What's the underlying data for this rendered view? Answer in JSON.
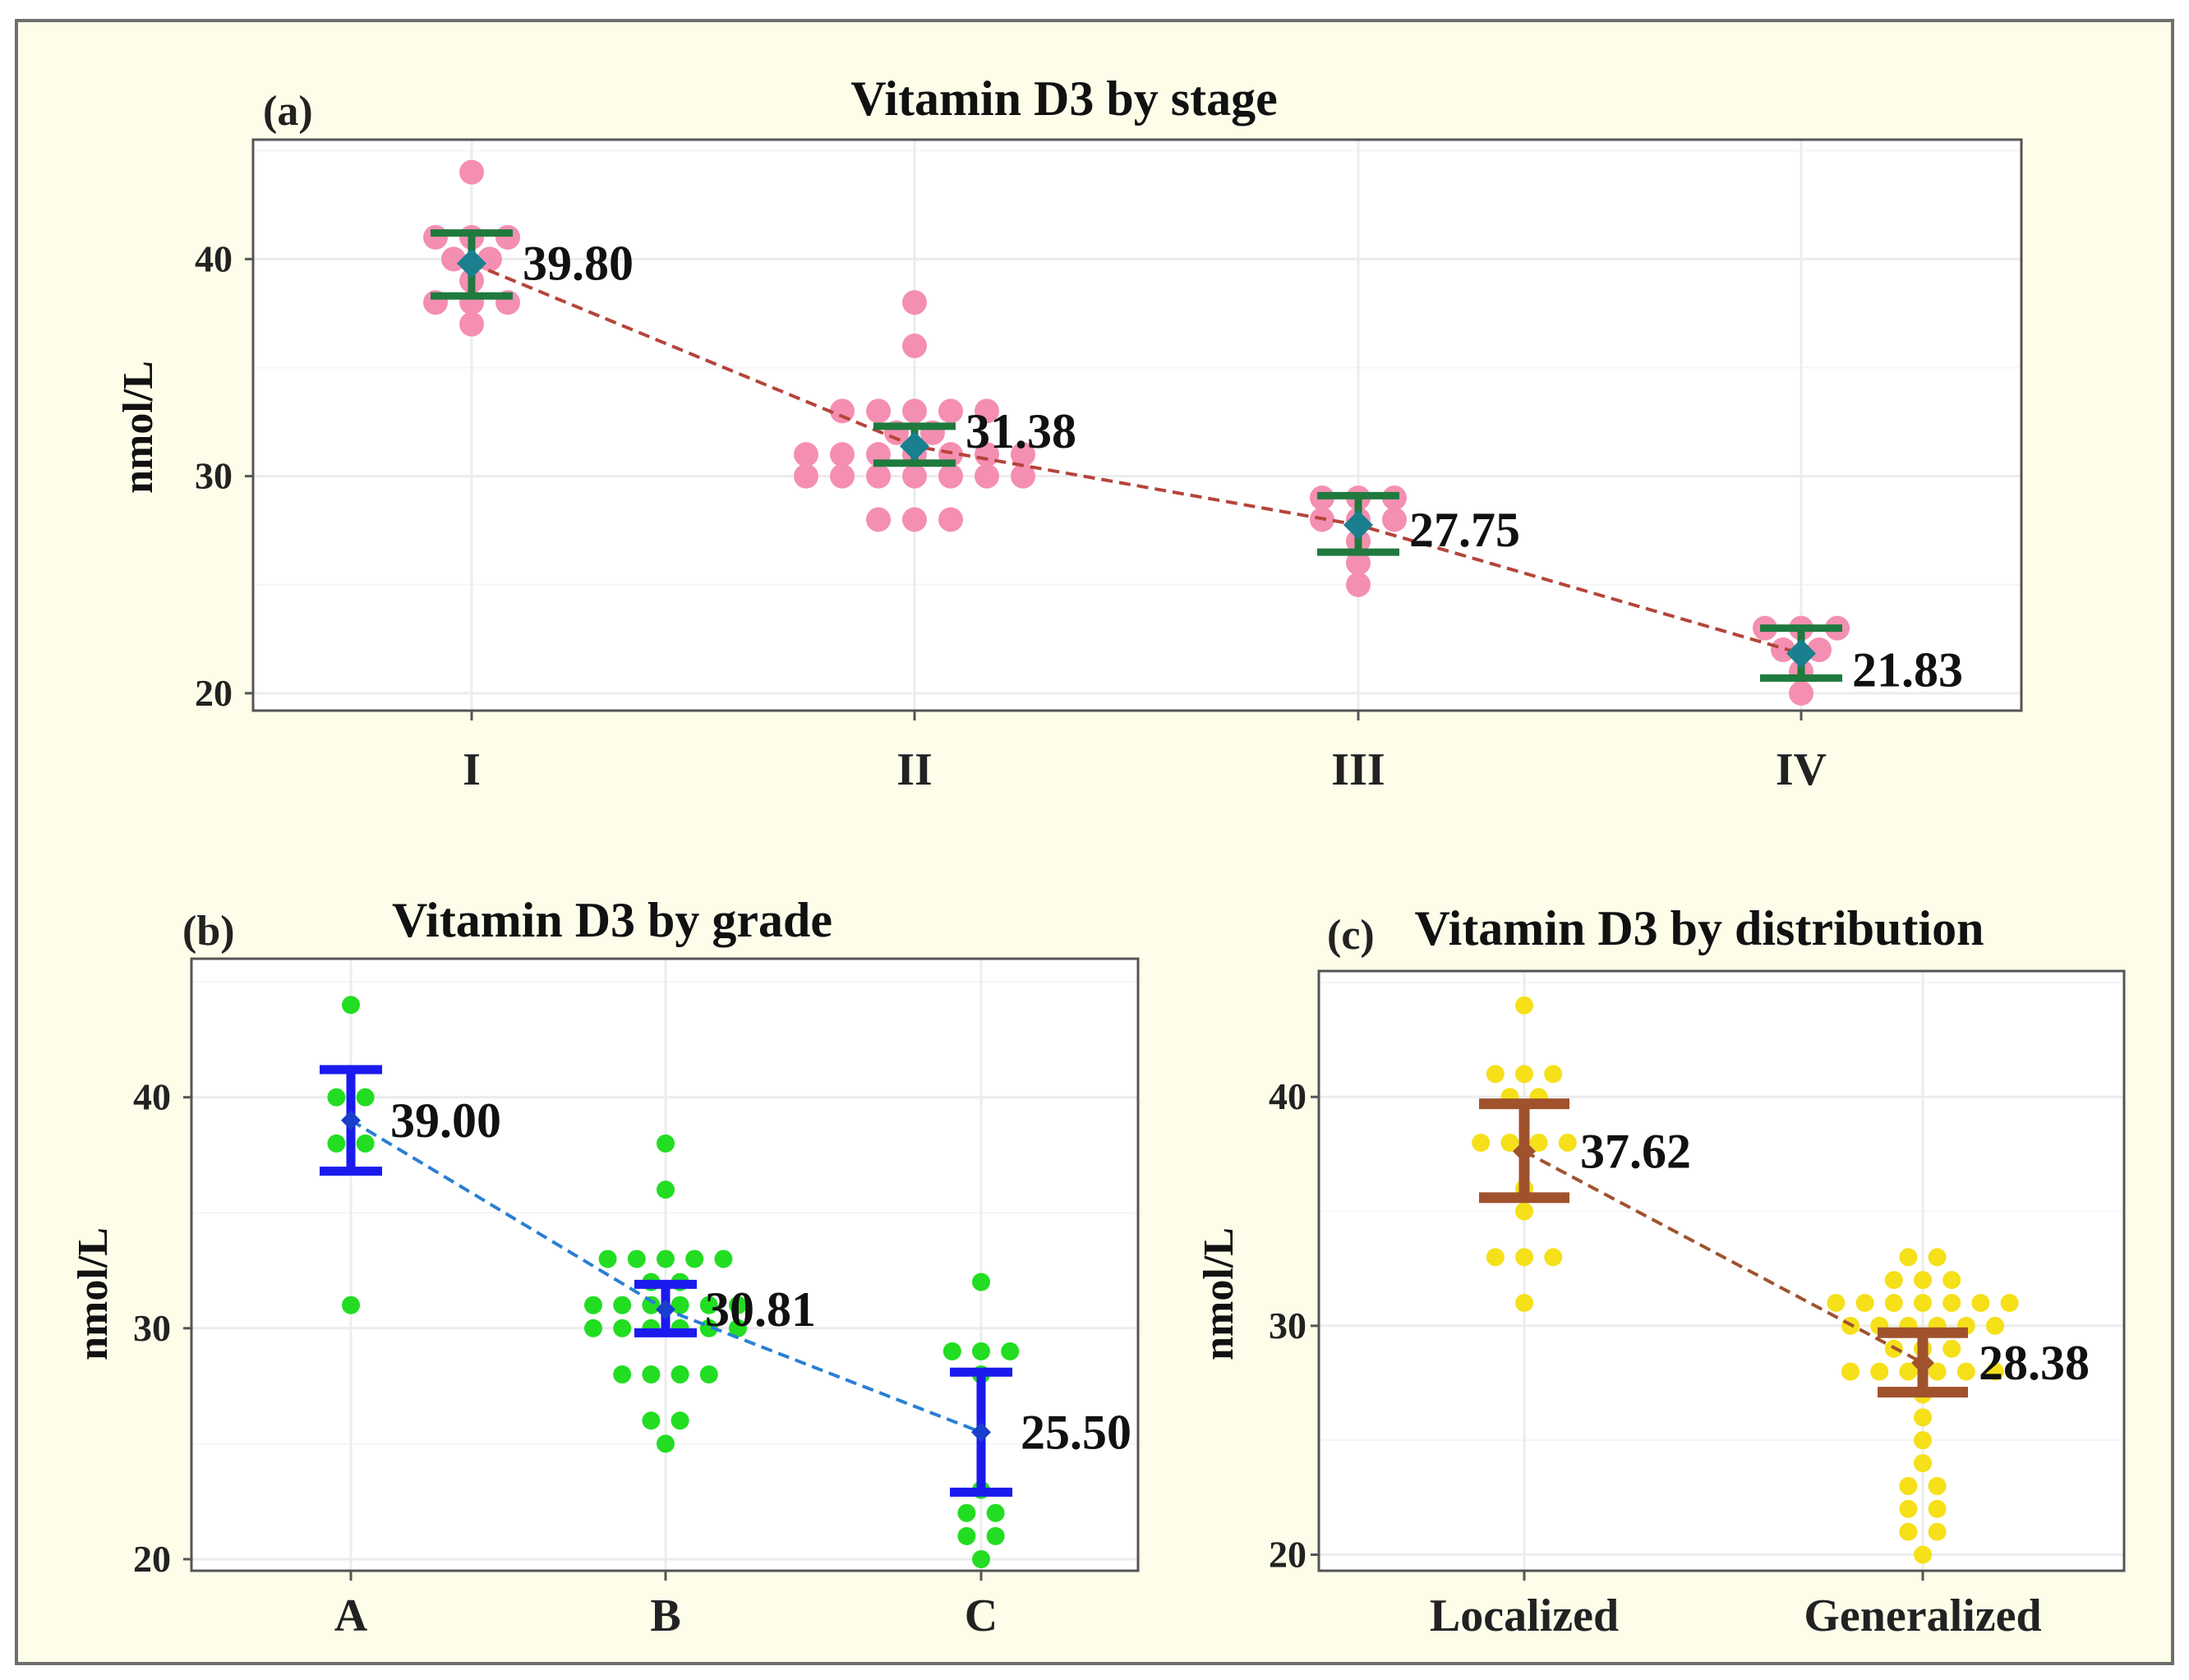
{
  "chart_data": [
    {
      "panel": "(a)",
      "type": "scatter",
      "title": "Vitamin D3 by stage",
      "xlabel": "",
      "ylabel": "nmol/L",
      "categories": [
        "I",
        "II",
        "III",
        "IV"
      ],
      "yticks": [
        20,
        30,
        40
      ],
      "ylim": [
        19.2,
        45.5
      ],
      "colors": {
        "points": "#f48fb1",
        "error_bar": "#1f7a3e",
        "mean_marker": "#1a7f8e",
        "trend": "#b5443b"
      },
      "means": [
        39.8,
        31.38,
        27.75,
        21.83
      ],
      "mean_labels": [
        "39.80",
        "31.38",
        "27.75",
        "21.83"
      ],
      "error_bars": [
        [
          38.3,
          41.2
        ],
        [
          30.6,
          32.3
        ],
        [
          26.5,
          29.1
        ],
        [
          20.7,
          23.0
        ]
      ],
      "points": [
        [
          44,
          41,
          41,
          41,
          40,
          40,
          39,
          38,
          38,
          38,
          37
        ],
        [
          38,
          36,
          33,
          33,
          33,
          33,
          33,
          32,
          32,
          31,
          31,
          31,
          31,
          31,
          31,
          31,
          30,
          30,
          30,
          30,
          30,
          30,
          30,
          28,
          28,
          28
        ],
        [
          29,
          29,
          29,
          28,
          28,
          28,
          27,
          26,
          25
        ],
        [
          23,
          23,
          23,
          22,
          22,
          21,
          20
        ]
      ]
    },
    {
      "panel": "(b)",
      "type": "scatter",
      "title": "Vitamin D3 by grade",
      "xlabel": "",
      "ylabel": "nmol/L",
      "categories": [
        "A",
        "B",
        "C"
      ],
      "yticks": [
        20,
        30,
        40
      ],
      "ylim": [
        19.5,
        46
      ],
      "colors": {
        "points": "#22dd22",
        "error_bar": "#1a1aee",
        "mean_marker": "#1a3fcc",
        "trend": "#2a7fd4"
      },
      "means": [
        39.0,
        30.81,
        25.5
      ],
      "mean_labels": [
        "39.00",
        "30.81",
        "25.50"
      ],
      "error_bars": [
        [
          36.8,
          41.2
        ],
        [
          29.8,
          31.9
        ],
        [
          22.9,
          28.1
        ]
      ],
      "points": [
        [
          44,
          40,
          40,
          38,
          38,
          31
        ],
        [
          38,
          36,
          33,
          33,
          33,
          33,
          33,
          32,
          32,
          31,
          31,
          31,
          31,
          31,
          31,
          30,
          30,
          30,
          30,
          30,
          30,
          28,
          28,
          28,
          28,
          26,
          26,
          25
        ],
        [
          32,
          29,
          29,
          29,
          28,
          23,
          22,
          22,
          21,
          21,
          20
        ]
      ]
    },
    {
      "panel": "(c)",
      "type": "scatter",
      "title": "Vitamin D3 by distribution",
      "xlabel": "",
      "ylabel": "nmol/L",
      "categories": [
        "Localized",
        "Generalized"
      ],
      "yticks": [
        20,
        30,
        40
      ],
      "ylim": [
        19.3,
        45.5
      ],
      "colors": {
        "points": "#f5e01a",
        "error_bar": "#a0522d",
        "mean_marker": "#a0522d",
        "trend": "#a0522d"
      },
      "means": [
        37.62,
        28.38
      ],
      "mean_labels": [
        "37.62",
        "28.38"
      ],
      "error_bars": [
        [
          35.6,
          39.7
        ],
        [
          27.1,
          29.7
        ]
      ],
      "points": [
        [
          44,
          41,
          41,
          41,
          40,
          40,
          38,
          38,
          38,
          38,
          36,
          35,
          33,
          33,
          33,
          31
        ],
        [
          33,
          33,
          32,
          32,
          32,
          31,
          31,
          31,
          31,
          31,
          31,
          31,
          30,
          30,
          30,
          30,
          30,
          30,
          29,
          29,
          29,
          28,
          28,
          28,
          28,
          28,
          28,
          27,
          26,
          25,
          24,
          23,
          23,
          22,
          22,
          21,
          21,
          20
        ]
      ]
    }
  ]
}
